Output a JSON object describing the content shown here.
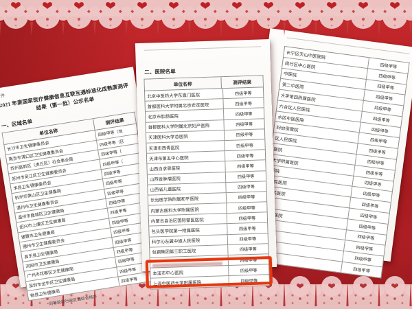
{
  "background": {
    "base_color": "#b02024",
    "lace_color": "#eec7c6",
    "highlight_color": "#e5370f"
  },
  "page1": {
    "attachment_label": "附件",
    "title_line1": "2021 年度国家医疗健康信息互联互通标准化成熟度测评",
    "title_line2": "结果（第一批）公示名单",
    "section_title": "一、区域名单",
    "columns": [
      "单位名称",
      "测评结果"
    ],
    "rows": [
      {
        "name": "长沙市卫生健康委员会",
        "result": "四级甲等（地"
      },
      {
        "name": "南京市浦口区卫生健康委员会",
        "result": "四级甲等（区"
      },
      {
        "name": "苏州高新区（虎丘区）社会事业局",
        "result": "四级甲等（"
      },
      {
        "name": "苏州市吴江区卫生健康委员会",
        "result": "四级甲等（"
      },
      {
        "name": "丰县卫生健康委员会",
        "result": "四级甲等"
      },
      {
        "name": "杭州市萧山区卫生健康局",
        "result": "四级甲等"
      },
      {
        "name": "温州市卫生健康委员会",
        "result": "四级甲等"
      },
      {
        "name": "温州市鹿城区卫生健康局",
        "result": "四级甲等"
      },
      {
        "name": "绍兴市上虞区卫生健康局",
        "result": "四级甲等"
      },
      {
        "name": "诸暨市卫生健康局",
        "result": "四级甲等"
      },
      {
        "name": "德州市卫生健康委员会",
        "result": "四级甲等"
      },
      {
        "name": "昌乐县卫生健康局",
        "result": "四级甲等"
      },
      {
        "name": "浏阳市卫生健康局",
        "result": "四级甲等"
      },
      {
        "name": "广州市花都区卫生健康局",
        "result": "四级甲等"
      },
      {
        "name": "深圳市龙华区卫生健康局",
        "result": "四级甲等"
      },
      {
        "name": "勉县卫生健康局",
        "result": "四级甲等"
      }
    ],
    "footnote": "*同等级按行政区划综合排序"
  },
  "page2": {
    "section_title": "二、医院名单",
    "columns": [
      "单位名称",
      "测评结果"
    ],
    "rows": [
      {
        "name": "北京中医药大学东直门医院",
        "result": "四级甲等"
      },
      {
        "name": "首都医科大学附属北京安定医院",
        "result": "四级甲等"
      },
      {
        "name": "北京市肛肠医院",
        "result": "四级甲等"
      },
      {
        "name": "首都医科大学附属北京妇产医院",
        "result": "四级甲等"
      },
      {
        "name": "天津医科大学总医院",
        "result": "四级甲等"
      },
      {
        "name": "天津市西青医院",
        "result": "四级甲等"
      },
      {
        "name": "天津市第五中心医院",
        "result": "四级甲等"
      },
      {
        "name": "山西白求恩医院",
        "result": "四级甲等"
      },
      {
        "name": "山西省肿瘤医院",
        "result": "四级甲等"
      },
      {
        "name": "山西省儿童医院",
        "result": "四级甲等"
      },
      {
        "name": "长治医学院附属和平医院",
        "result": "四级甲等"
      },
      {
        "name": "内蒙古医科大学附属医院",
        "result": "四级甲等"
      },
      {
        "name": "内蒙古自治区国际蒙医医院",
        "result": "四级甲等"
      },
      {
        "name": "包头医学院第一附属医院",
        "result": "四级甲等"
      },
      {
        "name": "科尔沁左翼中旗人民医院",
        "result": "四级甲等"
      },
      {
        "name": "包钢集团第三职工医院",
        "result": "四级甲等"
      },
      {
        "name": "",
        "result": "四级甲等"
      },
      {
        "name": "本溪市中心医院",
        "result": "四级甲等"
      },
      {
        "name": "上海中医药大学附属医院",
        "result": "四级甲等"
      }
    ],
    "highlight": {
      "highlighted_name": "本溪市中心医院",
      "color": "#e5370f",
      "covers_rows": "17-18"
    }
  },
  "page3": {
    "rows": [
      {
        "name": "长宁区天山中医医院",
        "result": "四级甲等"
      },
      {
        "name": "闵行区中心医院",
        "result": "四级甲等"
      },
      {
        "name": "中医院",
        "result": "四级甲等"
      },
      {
        "name": "第二中医院",
        "result": "四级甲等"
      },
      {
        "name": "大学第四附属医院",
        "result": "四级甲等"
      },
      {
        "name": "六合区人民医院",
        "result": "四级甲等"
      },
      {
        "name": "水区中医医院",
        "result": "四级甲等"
      },
      {
        "name": "妇幼保健院",
        "result": "四级甲等"
      },
      {
        "name": "区人民医院",
        "result": "四级甲等"
      },
      {
        "name": "医院",
        "result": "四级甲等"
      },
      {
        "name": "大学附属医院",
        "result": "四级甲等"
      },
      {
        "name": "医院",
        "result": "四级甲等"
      },
      {
        "name": "人民医院",
        "result": "四级甲等"
      },
      {
        "name": "人民医院",
        "result": "四级甲等"
      },
      {
        "name": "医院",
        "result": "四级甲等"
      },
      {
        "name": "人民医院",
        "result": "四级甲等"
      },
      {
        "name": "医院",
        "result": "四级甲等"
      },
      {
        "name": "医院",
        "result": "四级甲等"
      },
      {
        "name": "医院",
        "result": "四级甲等"
      },
      {
        "name": "院",
        "result": "四级甲等"
      }
    ]
  }
}
